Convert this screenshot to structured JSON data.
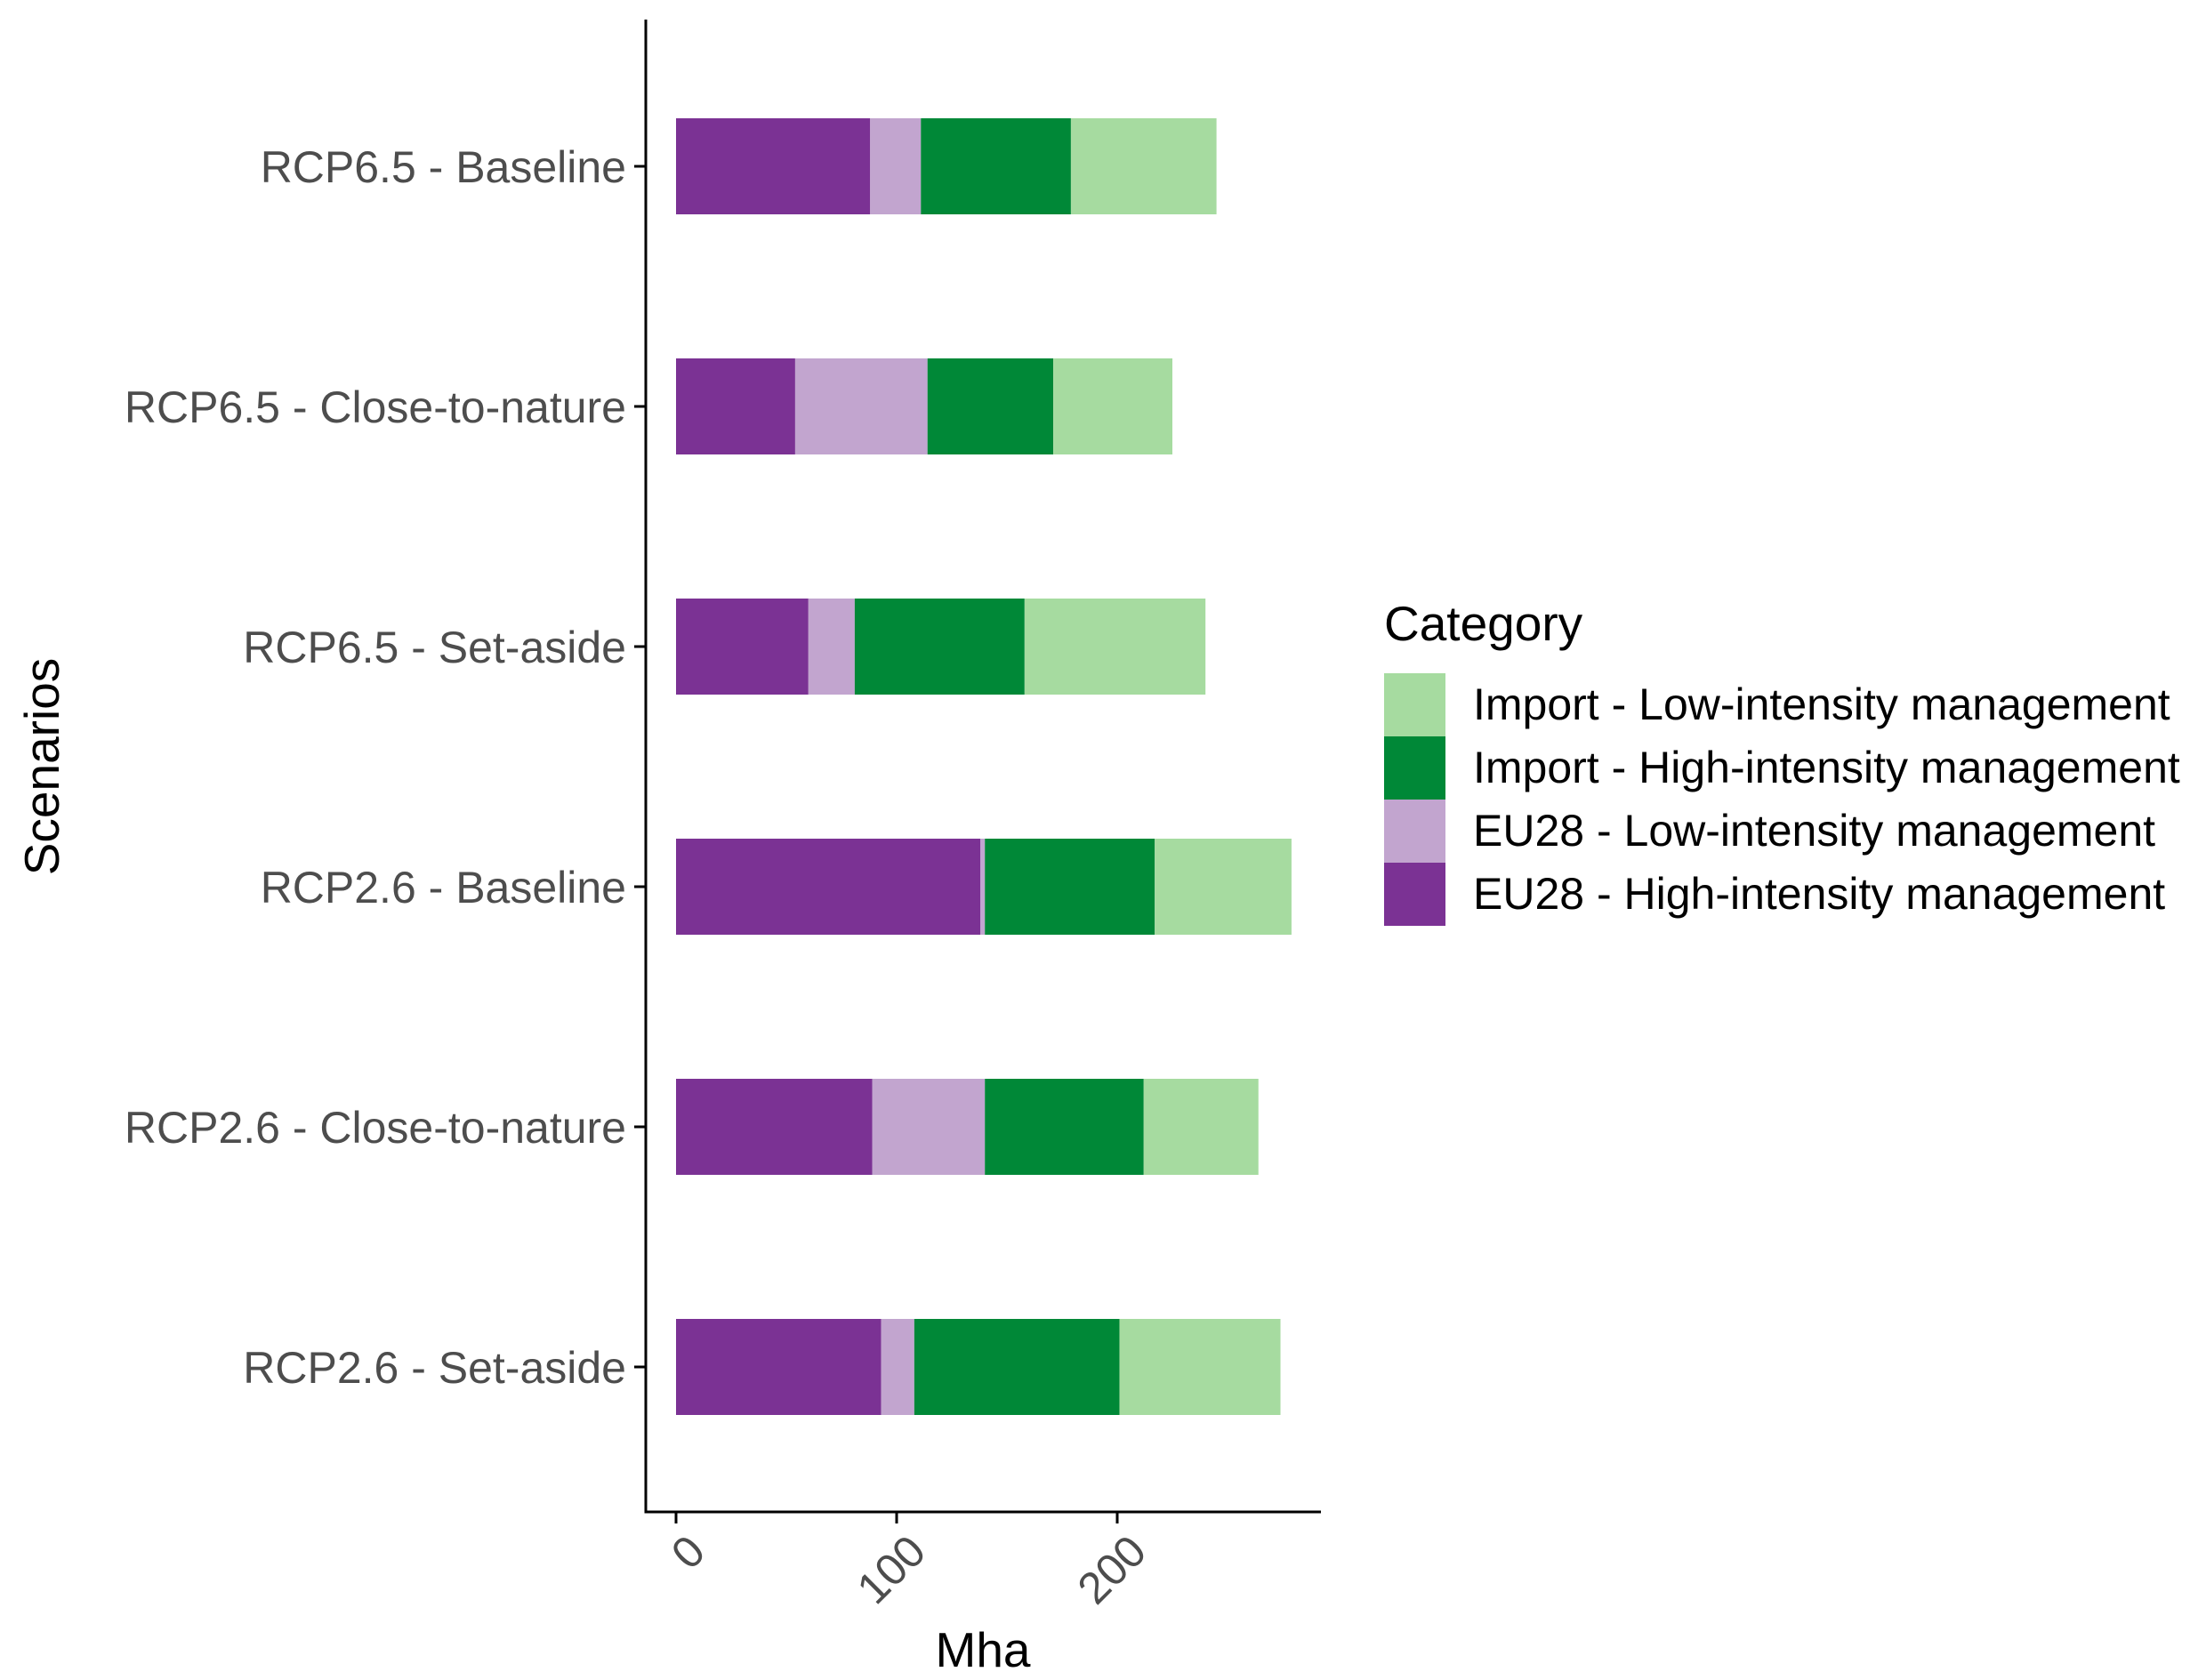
{
  "chart_data": {
    "type": "bar",
    "orientation": "horizontal",
    "stacked": true,
    "xlabel": "Mha",
    "ylabel": "Scenarios",
    "xlim": [
      0,
      290
    ],
    "x_ticks": [
      0,
      100,
      200
    ],
    "x_tick_labels": [
      "0",
      "100",
      "200"
    ],
    "grid": false,
    "legend_position": "right",
    "legend_title": "Category",
    "categories": [
      "RCP6.5 - Baseline",
      "RCP6.5 - Close-to-nature",
      "RCP6.5 - Set-aside",
      "RCP2.6 - Baseline",
      "RCP2.6 - Close-to-nature",
      "RCP2.6 - Set-aside"
    ],
    "series": [
      {
        "name": "EU28 - High-intensity management",
        "color": "#7b3294",
        "values": [
          88,
          54,
          60,
          138,
          89,
          93
        ]
      },
      {
        "name": "EU28 - Low-intensity management",
        "color": "#c2a5cf",
        "values": [
          23,
          60,
          21,
          2,
          51,
          15
        ]
      },
      {
        "name": "Import - High-intensity management",
        "color": "#008837",
        "values": [
          68,
          57,
          77,
          77,
          72,
          93
        ]
      },
      {
        "name": "Import - Low-intensity management",
        "color": "#a6dba0",
        "values": [
          66,
          54,
          82,
          62,
          52,
          73
        ]
      }
    ],
    "legend_order": [
      "Import - Low-intensity management",
      "Import - High-intensity management",
      "EU28 - Low-intensity management",
      "EU28 - High-intensity management"
    ]
  }
}
